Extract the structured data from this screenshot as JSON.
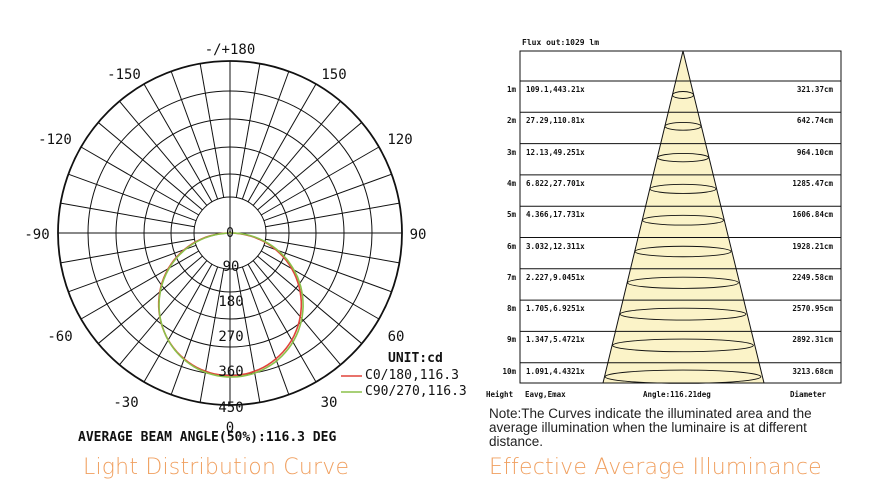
{
  "polar_chart": {
    "angle_labels": {
      "top": "-/+180",
      "l150": "-150",
      "r150": "150",
      "l120": "-120",
      "r120": "120",
      "l90": "-90",
      "r90": "90",
      "l60": "-60",
      "r60": "60",
      "l30": "-30",
      "r30": "30",
      "bottom": "0"
    },
    "center_label": "0",
    "radial_labels": [
      "90",
      "180",
      "270",
      "360",
      "450"
    ],
    "unit_label": "UNIT:cd",
    "beam_angle_text": "AVERAGE BEAM ANGLE(50%):116.3 DEG",
    "caption": "Light Distribution Curve"
  },
  "illuminance_chart": {
    "flux_out": "Flux out:1029 lm",
    "footer": {
      "height": "Height",
      "eavg": "Eavg,Emax",
      "angle": "Angle:116.21deg",
      "diameter": "Diameter"
    },
    "caption": "Effective Average Illuminance",
    "note": "Note:The Curves indicate the illuminated area and the average illumination when the luminaire is at different distance."
  },
  "colors": {
    "c0": "#e0443a",
    "c90": "#8cc04a",
    "cone_fill": "#fbf3c8",
    "caption": "#f0a060"
  },
  "chart_data": [
    {
      "type": "polar",
      "unit": "cd",
      "radial_ticks": [
        90,
        180,
        270,
        360,
        450
      ],
      "angle_ticks": [
        -180,
        -150,
        -120,
        -90,
        -60,
        -30,
        0,
        30,
        60,
        90,
        120,
        150,
        180
      ],
      "series": [
        {
          "name": "C0/180,116.3",
          "beam_angle": 116.3
        },
        {
          "name": "C90/270,116.3",
          "beam_angle": 116.3
        }
      ]
    },
    {
      "type": "table",
      "columns": [
        "Height",
        "Eavg,Emax",
        "Diameter"
      ],
      "rows": [
        {
          "height": "1m",
          "values": "109.1,443.21x",
          "diameter": "321.37cm"
        },
        {
          "height": "2m",
          "values": "27.29,110.81x",
          "diameter": "642.74cm"
        },
        {
          "height": "3m",
          "values": "12.13,49.251x",
          "diameter": "964.10cm"
        },
        {
          "height": "4m",
          "values": "6.822,27.701x",
          "diameter": "1285.47cm"
        },
        {
          "height": "5m",
          "values": "4.366,17.731x",
          "diameter": "1606.84cm"
        },
        {
          "height": "6m",
          "values": "3.032,12.311x",
          "diameter": "1928.21cm"
        },
        {
          "height": "7m",
          "values": "2.227,9.0451x",
          "diameter": "2249.58cm"
        },
        {
          "height": "8m",
          "values": "1.705,6.9251x",
          "diameter": "2570.95cm"
        },
        {
          "height": "9m",
          "values": "1.347,5.4721x",
          "diameter": "2892.31cm"
        },
        {
          "height": "10m",
          "values": "1.091,4.4321x",
          "diameter": "3213.68cm"
        }
      ]
    }
  ]
}
